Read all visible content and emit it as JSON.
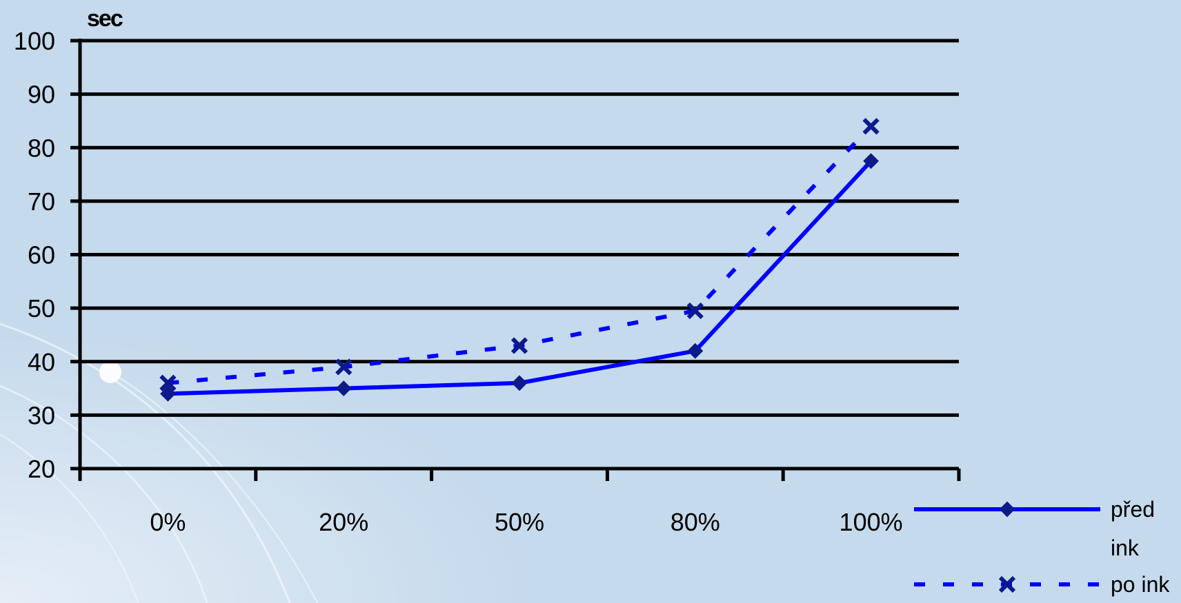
{
  "chart_data": {
    "type": "line",
    "ylabel": "sec",
    "ylim": [
      20,
      100
    ],
    "yticks": [
      20,
      30,
      40,
      50,
      60,
      70,
      80,
      90,
      100
    ],
    "categories": [
      "0%",
      "20%",
      "50%",
      "80%",
      "100%"
    ],
    "grid": true,
    "legend_position": "bottom-right",
    "series": [
      {
        "name": "před ink",
        "name_lines": [
          "před",
          "ink"
        ],
        "values": [
          34,
          35,
          36,
          42,
          77.5
        ],
        "style": "solid",
        "marker": "diamond",
        "color": "#0000ff",
        "marker_color": "#0d1a8a"
      },
      {
        "name": "po ink",
        "name_lines": [
          "po ink"
        ],
        "values": [
          36,
          39,
          43,
          49.5,
          84
        ],
        "style": "dashed",
        "marker": "x",
        "color": "#0000ff",
        "marker_color": "#0d1a8a"
      }
    ]
  }
}
